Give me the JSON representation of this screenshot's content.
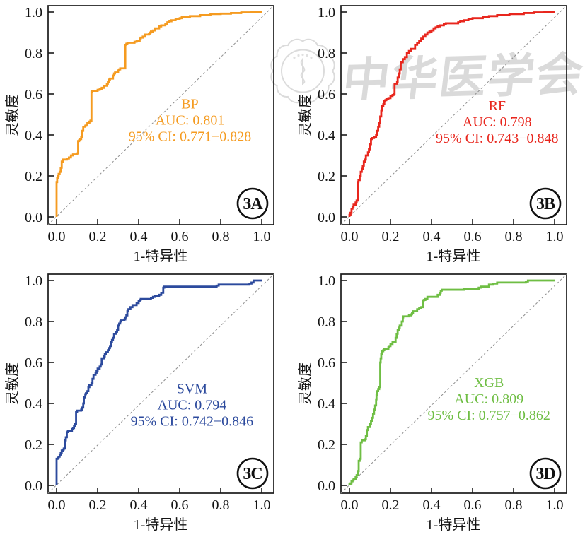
{
  "figure": {
    "background": "#ffffff",
    "grid": "2x2 ROC panels"
  },
  "watermark": {
    "text": "中华医学会",
    "seal_icon": "chinese-medical-association-seal"
  },
  "axes": {
    "x_label": "1-特异性",
    "y_label": "灵敏度",
    "x_ticks": [
      "0.0",
      "0.2",
      "0.4",
      "0.6",
      "0.8",
      "1.0"
    ],
    "y_ticks": [
      "0.0",
      "0.2",
      "0.4",
      "0.6",
      "0.8",
      "1.0"
    ],
    "x_range": [
      0,
      1
    ],
    "y_range": [
      0,
      1
    ],
    "grid": false,
    "diagonal_reference": true
  },
  "chart_data": [
    {
      "type": "line",
      "subtype": "roc_curve",
      "panel_label": "3A",
      "model": "BP",
      "auc_value": 0.801,
      "ci_range": "0.771-0.828",
      "auc_label": "AUC: 0.801",
      "ci_label": "95% CI: 0.771−0.828",
      "color": "#F59B20",
      "xlabel": "1-特异性",
      "ylabel": "灵敏度",
      "x_range": [
        0,
        1
      ],
      "y_range": [
        0,
        1
      ],
      "annotation": {
        "x": 0.65,
        "y": 0.53
      },
      "roc_points": [
        [
          0,
          0
        ],
        [
          0.003,
          0.17
        ],
        [
          0.008,
          0.19
        ],
        [
          0.01,
          0.2
        ],
        [
          0.015,
          0.21
        ],
        [
          0.02,
          0.22
        ],
        [
          0.025,
          0.24
        ],
        [
          0.03,
          0.27
        ],
        [
          0.05,
          0.28
        ],
        [
          0.06,
          0.285
        ],
        [
          0.07,
          0.29
        ],
        [
          0.08,
          0.3
        ],
        [
          0.1,
          0.305
        ],
        [
          0.105,
          0.31
        ],
        [
          0.11,
          0.37
        ],
        [
          0.115,
          0.375
        ],
        [
          0.12,
          0.38
        ],
        [
          0.125,
          0.39
        ],
        [
          0.13,
          0.42
        ],
        [
          0.14,
          0.44
        ],
        [
          0.145,
          0.445
        ],
        [
          0.15,
          0.45
        ],
        [
          0.16,
          0.46
        ],
        [
          0.165,
          0.465
        ],
        [
          0.17,
          0.47
        ],
        [
          0.172,
          0.61
        ],
        [
          0.2,
          0.615
        ],
        [
          0.21,
          0.62
        ],
        [
          0.22,
          0.625
        ],
        [
          0.23,
          0.63
        ],
        [
          0.245,
          0.64
        ],
        [
          0.25,
          0.65
        ],
        [
          0.255,
          0.66
        ],
        [
          0.26,
          0.67
        ],
        [
          0.275,
          0.675
        ],
        [
          0.28,
          0.69
        ],
        [
          0.285,
          0.7
        ],
        [
          0.3,
          0.705
        ],
        [
          0.305,
          0.715
        ],
        [
          0.31,
          0.72
        ],
        [
          0.335,
          0.725
        ],
        [
          0.34,
          0.84
        ],
        [
          0.345,
          0.845
        ],
        [
          0.35,
          0.85
        ],
        [
          0.38,
          0.85
        ],
        [
          0.39,
          0.855
        ],
        [
          0.405,
          0.86
        ],
        [
          0.41,
          0.87
        ],
        [
          0.42,
          0.875
        ],
        [
          0.43,
          0.88
        ],
        [
          0.435,
          0.89
        ],
        [
          0.45,
          0.89
        ],
        [
          0.455,
          0.895
        ],
        [
          0.46,
          0.9
        ],
        [
          0.47,
          0.905
        ],
        [
          0.48,
          0.91
        ],
        [
          0.5,
          0.92
        ],
        [
          0.51,
          0.93
        ],
        [
          0.53,
          0.935
        ],
        [
          0.54,
          0.94
        ],
        [
          0.55,
          0.95
        ],
        [
          0.56,
          0.955
        ],
        [
          0.58,
          0.96
        ],
        [
          0.6,
          0.965
        ],
        [
          0.61,
          0.97
        ],
        [
          0.65,
          0.975
        ],
        [
          0.7,
          0.98
        ],
        [
          0.75,
          0.985
        ],
        [
          0.8,
          0.99
        ],
        [
          0.85,
          0.992
        ],
        [
          0.9,
          0.995
        ],
        [
          0.95,
          0.998
        ],
        [
          1,
          1
        ]
      ]
    },
    {
      "type": "line",
      "subtype": "roc_curve",
      "panel_label": "3B",
      "model": "RF",
      "auc_value": 0.798,
      "ci_range": "0.743-0.848",
      "auc_label": "AUC: 0.798",
      "ci_label": "95% CI: 0.743−0.848",
      "color": "#E8261D",
      "xlabel": "1-特异性",
      "ylabel": "灵敏度",
      "x_range": [
        0,
        1
      ],
      "y_range": [
        0,
        1
      ],
      "annotation": {
        "x": 0.72,
        "y": 0.52
      },
      "roc_points": [
        [
          0,
          0
        ],
        [
          0.005,
          0.01
        ],
        [
          0.01,
          0.02
        ],
        [
          0.015,
          0.04
        ],
        [
          0.02,
          0.05
        ],
        [
          0.03,
          0.06
        ],
        [
          0.035,
          0.07
        ],
        [
          0.04,
          0.08
        ],
        [
          0.044,
          0.17
        ],
        [
          0.05,
          0.18
        ],
        [
          0.055,
          0.2
        ],
        [
          0.06,
          0.22
        ],
        [
          0.065,
          0.235
        ],
        [
          0.07,
          0.25
        ],
        [
          0.075,
          0.27
        ],
        [
          0.08,
          0.28
        ],
        [
          0.09,
          0.3
        ],
        [
          0.095,
          0.315
        ],
        [
          0.1,
          0.33
        ],
        [
          0.105,
          0.355
        ],
        [
          0.11,
          0.38
        ],
        [
          0.12,
          0.385
        ],
        [
          0.13,
          0.39
        ],
        [
          0.135,
          0.4
        ],
        [
          0.14,
          0.42
        ],
        [
          0.145,
          0.44
        ],
        [
          0.15,
          0.46
        ],
        [
          0.155,
          0.49
        ],
        [
          0.16,
          0.52
        ],
        [
          0.165,
          0.54
        ],
        [
          0.17,
          0.55
        ],
        [
          0.175,
          0.565
        ],
        [
          0.18,
          0.57
        ],
        [
          0.19,
          0.575
        ],
        [
          0.2,
          0.58
        ],
        [
          0.21,
          0.59
        ],
        [
          0.215,
          0.595
        ],
        [
          0.22,
          0.6
        ],
        [
          0.232,
          0.65
        ],
        [
          0.235,
          0.66
        ],
        [
          0.24,
          0.68
        ],
        [
          0.245,
          0.7
        ],
        [
          0.25,
          0.72
        ],
        [
          0.252,
          0.75
        ],
        [
          0.26,
          0.755
        ],
        [
          0.27,
          0.77
        ],
        [
          0.28,
          0.78
        ],
        [
          0.29,
          0.8
        ],
        [
          0.3,
          0.81
        ],
        [
          0.32,
          0.82
        ],
        [
          0.33,
          0.84
        ],
        [
          0.34,
          0.85
        ],
        [
          0.35,
          0.86
        ],
        [
          0.36,
          0.87
        ],
        [
          0.37,
          0.88
        ],
        [
          0.38,
          0.89
        ],
        [
          0.39,
          0.9
        ],
        [
          0.4,
          0.905
        ],
        [
          0.41,
          0.91
        ],
        [
          0.42,
          0.92
        ],
        [
          0.43,
          0.925
        ],
        [
          0.44,
          0.93
        ],
        [
          0.46,
          0.935
        ],
        [
          0.47,
          0.94
        ],
        [
          0.475,
          0.945
        ],
        [
          0.53,
          0.945
        ],
        [
          0.54,
          0.95
        ],
        [
          0.56,
          0.955
        ],
        [
          0.58,
          0.96
        ],
        [
          0.6,
          0.965
        ],
        [
          0.65,
          0.97
        ],
        [
          0.68,
          0.975
        ],
        [
          0.72,
          0.98
        ],
        [
          0.78,
          0.985
        ],
        [
          0.85,
          0.99
        ],
        [
          0.9,
          0.995
        ],
        [
          0.95,
          0.998
        ],
        [
          1,
          1
        ]
      ]
    },
    {
      "type": "line",
      "subtype": "roc_curve",
      "panel_label": "3C",
      "model": "SVM",
      "auc_value": 0.794,
      "ci_range": "0.742-0.846",
      "auc_label": "AUC: 0.794",
      "ci_label": "95% CI: 0.742−0.846",
      "color": "#2C4A9D",
      "xlabel": "1-特异性",
      "ylabel": "灵敏度",
      "x_range": [
        0,
        1
      ],
      "y_range": [
        0,
        1
      ],
      "annotation": {
        "x": 0.66,
        "y": 0.45
      },
      "roc_points": [
        [
          0,
          0
        ],
        [
          0.005,
          0.13
        ],
        [
          0.01,
          0.135
        ],
        [
          0.015,
          0.14
        ],
        [
          0.02,
          0.15
        ],
        [
          0.025,
          0.16
        ],
        [
          0.03,
          0.17
        ],
        [
          0.035,
          0.175
        ],
        [
          0.04,
          0.18
        ],
        [
          0.045,
          0.22
        ],
        [
          0.05,
          0.235
        ],
        [
          0.055,
          0.26
        ],
        [
          0.075,
          0.265
        ],
        [
          0.08,
          0.275
        ],
        [
          0.085,
          0.28
        ],
        [
          0.09,
          0.29
        ],
        [
          0.095,
          0.3
        ],
        [
          0.1,
          0.36
        ],
        [
          0.12,
          0.365
        ],
        [
          0.125,
          0.37
        ],
        [
          0.13,
          0.38
        ],
        [
          0.133,
          0.4
        ],
        [
          0.14,
          0.43
        ],
        [
          0.143,
          0.445
        ],
        [
          0.15,
          0.45
        ],
        [
          0.155,
          0.46
        ],
        [
          0.16,
          0.48
        ],
        [
          0.17,
          0.49
        ],
        [
          0.175,
          0.5
        ],
        [
          0.18,
          0.52
        ],
        [
          0.19,
          0.54
        ],
        [
          0.195,
          0.55
        ],
        [
          0.2,
          0.56
        ],
        [
          0.21,
          0.57
        ],
        [
          0.215,
          0.58
        ],
        [
          0.22,
          0.59
        ],
        [
          0.23,
          0.62
        ],
        [
          0.235,
          0.63
        ],
        [
          0.24,
          0.64
        ],
        [
          0.25,
          0.65
        ],
        [
          0.255,
          0.66
        ],
        [
          0.26,
          0.67
        ],
        [
          0.265,
          0.68
        ],
        [
          0.27,
          0.7
        ],
        [
          0.275,
          0.71
        ],
        [
          0.28,
          0.72
        ],
        [
          0.29,
          0.74
        ],
        [
          0.295,
          0.75
        ],
        [
          0.3,
          0.76
        ],
        [
          0.305,
          0.78
        ],
        [
          0.31,
          0.79
        ],
        [
          0.315,
          0.8
        ],
        [
          0.33,
          0.805
        ],
        [
          0.335,
          0.81
        ],
        [
          0.34,
          0.82
        ],
        [
          0.345,
          0.83
        ],
        [
          0.35,
          0.85
        ],
        [
          0.36,
          0.86
        ],
        [
          0.37,
          0.87
        ],
        [
          0.39,
          0.88
        ],
        [
          0.4,
          0.89
        ],
        [
          0.405,
          0.9
        ],
        [
          0.41,
          0.905
        ],
        [
          0.46,
          0.91
        ],
        [
          0.47,
          0.915
        ],
        [
          0.48,
          0.92
        ],
        [
          0.5,
          0.925
        ],
        [
          0.51,
          0.93
        ],
        [
          0.52,
          0.94
        ],
        [
          0.525,
          0.965
        ],
        [
          0.78,
          0.97
        ],
        [
          0.79,
          0.975
        ],
        [
          0.8,
          0.98
        ],
        [
          0.94,
          0.98
        ],
        [
          0.95,
          0.985
        ],
        [
          0.96,
          0.99
        ],
        [
          0.97,
          1
        ],
        [
          1,
          1
        ]
      ]
    },
    {
      "type": "line",
      "subtype": "roc_curve",
      "panel_label": "3D",
      "model": "XGB",
      "auc_value": 0.809,
      "ci_range": "0.757-0.862",
      "auc_label": "AUC: 0.809",
      "ci_label": "95% CI: 0.757−0.862",
      "color": "#6FBE44",
      "xlabel": "1-特异性",
      "ylabel": "灵敏度",
      "x_range": [
        0,
        1
      ],
      "y_range": [
        0,
        1
      ],
      "annotation": {
        "x": 0.68,
        "y": 0.48
      },
      "roc_points": [
        [
          0,
          0
        ],
        [
          0.005,
          0.005
        ],
        [
          0.01,
          0.01
        ],
        [
          0.015,
          0.02
        ],
        [
          0.02,
          0.025
        ],
        [
          0.03,
          0.03
        ],
        [
          0.035,
          0.04
        ],
        [
          0.04,
          0.05
        ],
        [
          0.045,
          0.07
        ],
        [
          0.05,
          0.12
        ],
        [
          0.055,
          0.13
        ],
        [
          0.06,
          0.21
        ],
        [
          0.075,
          0.22
        ],
        [
          0.08,
          0.225
        ],
        [
          0.085,
          0.24
        ],
        [
          0.09,
          0.27
        ],
        [
          0.1,
          0.285
        ],
        [
          0.105,
          0.3
        ],
        [
          0.11,
          0.315
        ],
        [
          0.115,
          0.33
        ],
        [
          0.12,
          0.35
        ],
        [
          0.125,
          0.37
        ],
        [
          0.13,
          0.39
        ],
        [
          0.132,
          0.42
        ],
        [
          0.135,
          0.44
        ],
        [
          0.14,
          0.46
        ],
        [
          0.145,
          0.47
        ],
        [
          0.15,
          0.48
        ],
        [
          0.152,
          0.6
        ],
        [
          0.155,
          0.62
        ],
        [
          0.16,
          0.64
        ],
        [
          0.165,
          0.655
        ],
        [
          0.17,
          0.66
        ],
        [
          0.19,
          0.665
        ],
        [
          0.195,
          0.675
        ],
        [
          0.2,
          0.68
        ],
        [
          0.21,
          0.69
        ],
        [
          0.225,
          0.7
        ],
        [
          0.23,
          0.72
        ],
        [
          0.235,
          0.74
        ],
        [
          0.24,
          0.76
        ],
        [
          0.245,
          0.77
        ],
        [
          0.255,
          0.78
        ],
        [
          0.26,
          0.8
        ],
        [
          0.262,
          0.82
        ],
        [
          0.29,
          0.825
        ],
        [
          0.3,
          0.83
        ],
        [
          0.305,
          0.835
        ],
        [
          0.31,
          0.84
        ],
        [
          0.33,
          0.85
        ],
        [
          0.34,
          0.86
        ],
        [
          0.35,
          0.865
        ],
        [
          0.36,
          0.87
        ],
        [
          0.362,
          0.9
        ],
        [
          0.37,
          0.905
        ],
        [
          0.38,
          0.91
        ],
        [
          0.39,
          0.92
        ],
        [
          0.43,
          0.92
        ],
        [
          0.44,
          0.93
        ],
        [
          0.445,
          0.94
        ],
        [
          0.45,
          0.95
        ],
        [
          0.56,
          0.955
        ],
        [
          0.57,
          0.96
        ],
        [
          0.63,
          0.96
        ],
        [
          0.64,
          0.965
        ],
        [
          0.68,
          0.97
        ],
        [
          0.7,
          0.98
        ],
        [
          0.72,
          0.985
        ],
        [
          0.73,
          0.99
        ],
        [
          0.86,
          0.99
        ],
        [
          0.87,
          0.995
        ],
        [
          0.88,
          1
        ],
        [
          1,
          1
        ]
      ]
    }
  ]
}
